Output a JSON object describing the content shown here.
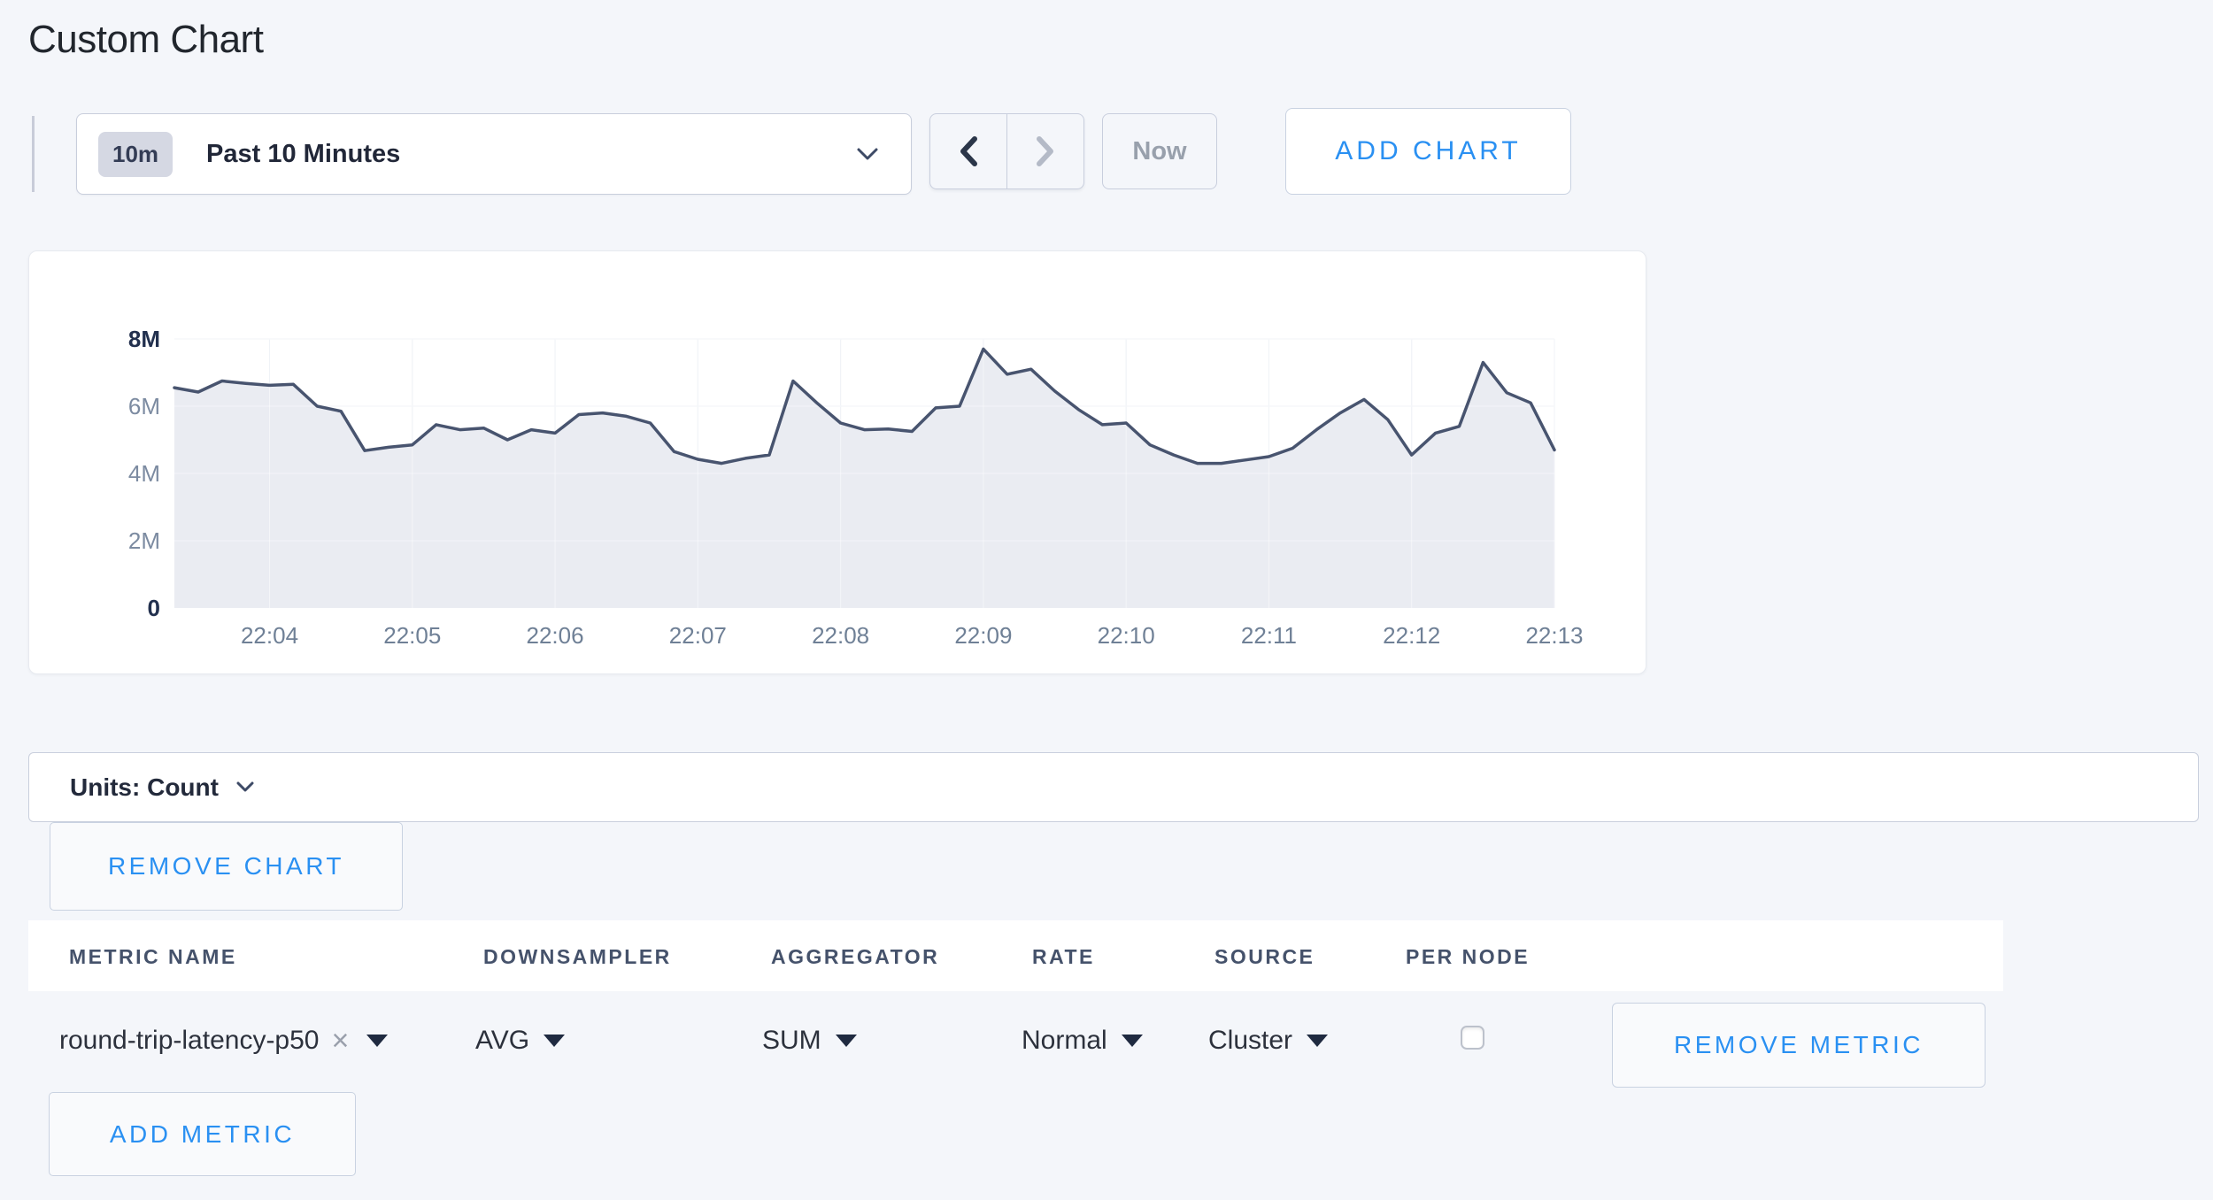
{
  "page_title": "Custom Chart",
  "toolbar": {
    "timescale_badge": "10m",
    "timescale_label": "Past 10 Minutes",
    "now_label": "Now",
    "add_chart_label": "ADD CHART"
  },
  "units_bar": {
    "label": "Units: Count"
  },
  "chart_actions": {
    "remove_chart_label": "REMOVE CHART"
  },
  "chart_data": {
    "type": "area",
    "title": "",
    "unit": "Count",
    "value_scale": "millions",
    "ylim_millions": [
      0,
      8
    ],
    "y_ticks": [
      {
        "label": "0",
        "value_millions": 0,
        "bold": true
      },
      {
        "label": "2M",
        "value_millions": 2,
        "bold": false
      },
      {
        "label": "4M",
        "value_millions": 4,
        "bold": false
      },
      {
        "label": "6M",
        "value_millions": 6,
        "bold": false
      },
      {
        "label": "8M",
        "value_millions": 8,
        "bold": true
      }
    ],
    "x_tick_labels": [
      "22:04",
      "22:05",
      "22:06",
      "22:07",
      "22:08",
      "22:09",
      "22:10",
      "22:11",
      "22:12",
      "22:13"
    ],
    "x_tick_indices": [
      4,
      10,
      16,
      22,
      28,
      34,
      40,
      46,
      52,
      58
    ],
    "grid": true,
    "legend_position": "none",
    "line_color": "#48546f",
    "fill_color": "#e9ebf1",
    "series": [
      {
        "name": "round-trip-latency-p50",
        "values_millions": [
          6.55,
          6.42,
          6.75,
          6.68,
          6.62,
          6.65,
          6.0,
          5.85,
          4.68,
          4.78,
          4.85,
          5.45,
          5.3,
          5.35,
          5.0,
          5.3,
          5.2,
          5.75,
          5.8,
          5.7,
          5.5,
          4.65,
          4.42,
          4.3,
          4.45,
          4.55,
          6.75,
          6.1,
          5.5,
          5.3,
          5.32,
          5.25,
          5.95,
          6.0,
          7.7,
          6.95,
          7.1,
          6.45,
          5.9,
          5.45,
          5.5,
          4.85,
          4.55,
          4.3,
          4.3,
          4.4,
          4.5,
          4.75,
          5.3,
          5.8,
          6.2,
          5.6,
          4.55,
          5.2,
          5.4,
          7.3,
          6.4,
          6.1,
          4.7
        ]
      }
    ]
  },
  "metrics_table": {
    "headers": [
      "METRIC NAME",
      "DOWNSAMPLER",
      "AGGREGATOR",
      "RATE",
      "SOURCE",
      "PER NODE"
    ],
    "rows": [
      {
        "metric_name": "round-trip-latency-p50",
        "downsampler": "AVG",
        "aggregator": "SUM",
        "rate": "Normal",
        "source": "Cluster",
        "per_node_checked": false,
        "remove_label": "REMOVE METRIC"
      }
    ],
    "add_metric_label": "ADD METRIC"
  }
}
